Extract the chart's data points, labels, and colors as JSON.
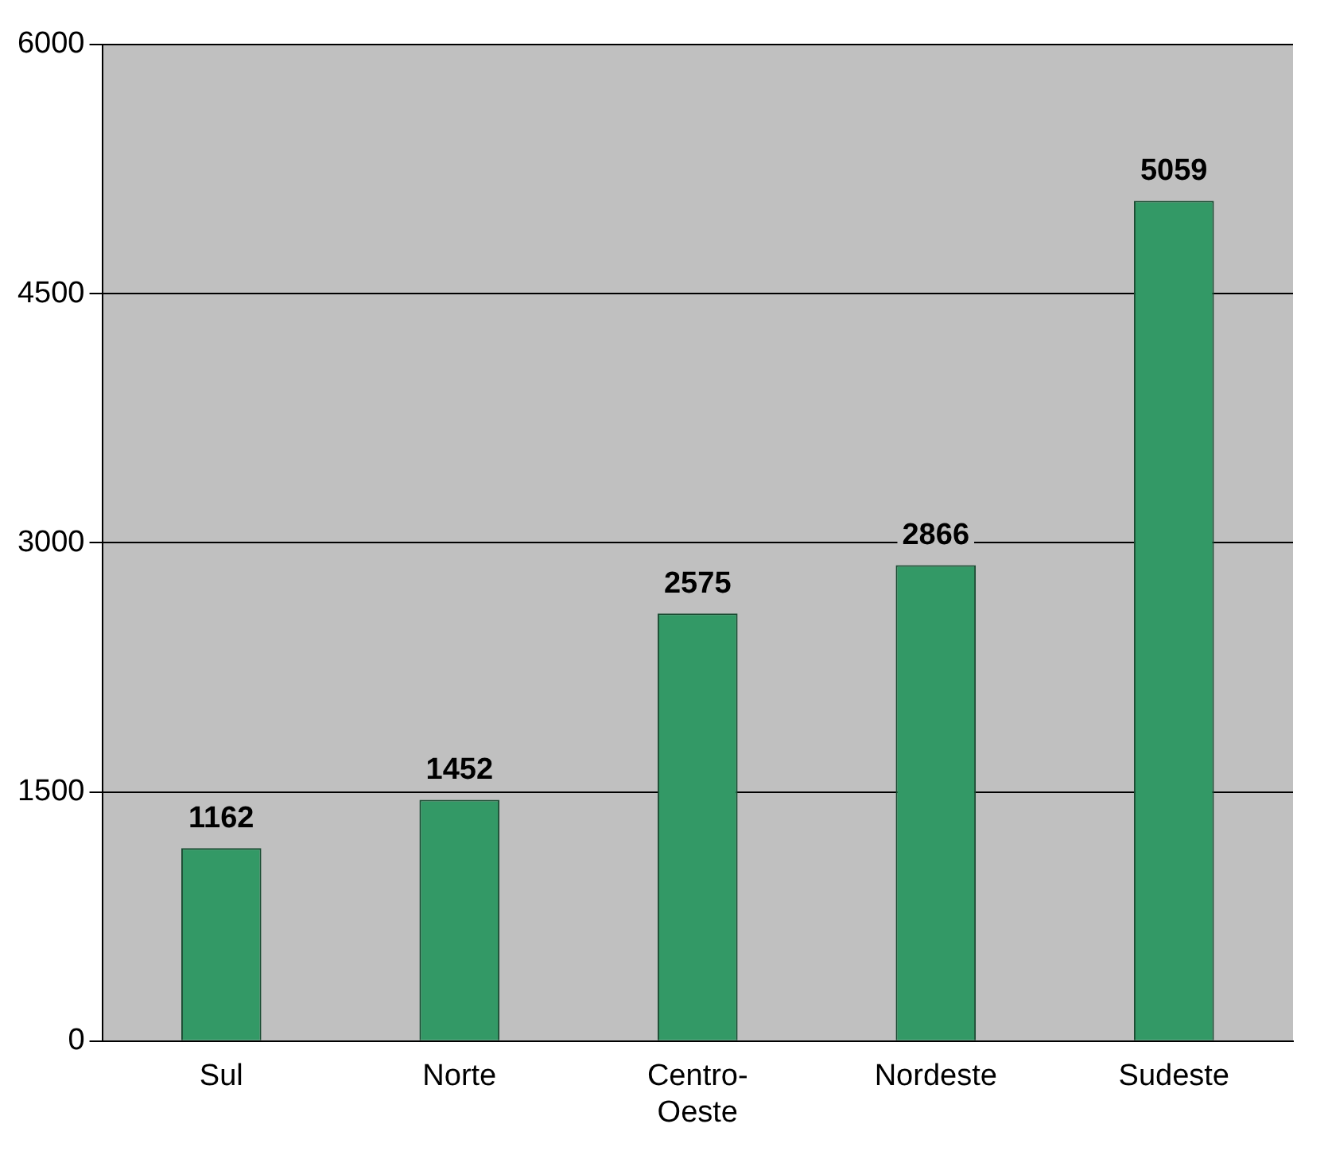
{
  "chart_data": {
    "type": "bar",
    "categories": [
      "Sul",
      "Norte",
      "Centro-Oeste",
      "Nordeste",
      "Sudeste"
    ],
    "values": [
      1162,
      1452,
      2575,
      2866,
      5059
    ],
    "color": "#339966",
    "ylim": [
      0,
      6000
    ],
    "yticks": [
      0,
      1500,
      3000,
      4500,
      6000
    ],
    "grid": "y",
    "data_labels": true
  }
}
